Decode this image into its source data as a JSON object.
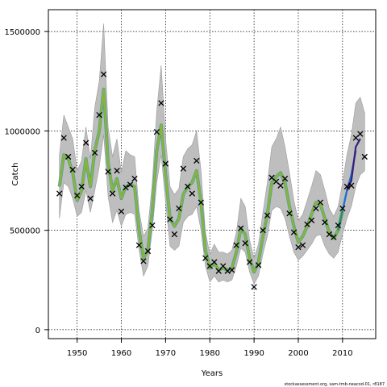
{
  "chart_data": {
    "type": "line",
    "title": "",
    "xlabel": "Years",
    "ylabel": "Catch",
    "xlim": [
      1943.5,
      2017.5
    ],
    "ylim": [
      -45000,
      1610000
    ],
    "xticks": [
      1950,
      1960,
      1970,
      1980,
      1990,
      2000,
      2010
    ],
    "yticks": [
      0,
      500000,
      1000000,
      1500000
    ],
    "grid": true,
    "grid_style": "dotted",
    "footer": "stockassessment.org, sam-tmb-neacod-01, r8187",
    "colors": {
      "band": "#bebebe",
      "estimate_main": "#8bb33a",
      "estimate_retro_a": "#2e8b57",
      "estimate_retro_b": "#1f6fd6",
      "estimate_retro_c": "#3b1f7a",
      "observed_marker": "#000000"
    },
    "series": [
      {
        "name": "",
        "kind": "observed",
        "marker": "x",
        "x": [
          1946,
          1947,
          1948,
          1949,
          1950,
          1951,
          1952,
          1953,
          1954,
          1955,
          1956,
          1957,
          1958,
          1959,
          1960,
          1961,
          1962,
          1963,
          1964,
          1965,
          1966,
          1967,
          1968,
          1969,
          1970,
          1971,
          1972,
          1973,
          1974,
          1975,
          1976,
          1977,
          1978,
          1979,
          1980,
          1981,
          1982,
          1983,
          1984,
          1985,
          1986,
          1987,
          1988,
          1989,
          1990,
          1991,
          1992,
          1993,
          1994,
          1995,
          1996,
          1997,
          1998,
          1999,
          2000,
          2001,
          2002,
          2003,
          2004,
          2005,
          2006,
          2007,
          2008,
          2009,
          2010,
          2011,
          2012,
          2013,
          2014,
          2015
        ],
        "values": [
          685000,
          965000,
          870000,
          805000,
          675000,
          720000,
          940000,
          660000,
          890000,
          1080000,
          1285000,
          795000,
          685000,
          800000,
          595000,
          715000,
          730000,
          760000,
          425000,
          345000,
          395000,
          525000,
          995000,
          1140000,
          835000,
          555000,
          480000,
          610000,
          810000,
          720000,
          685000,
          850000,
          640000,
          360000,
          320000,
          340000,
          295000,
          320000,
          295000,
          300000,
          425000,
          510000,
          435000,
          340000,
          215000,
          325000,
          500000,
          575000,
          765000,
          745000,
          725000,
          760000,
          585000,
          490000,
          415000,
          425000,
          530000,
          550000,
          610000,
          640000,
          540000,
          480000,
          465000,
          525000,
          610000,
          720000,
          725000,
          965000,
          985000,
          870000
        ]
      },
      {
        "name": "",
        "kind": "estimate",
        "x": [
          1946,
          1947,
          1948,
          1949,
          1950,
          1951,
          1952,
          1953,
          1954,
          1955,
          1956,
          1957,
          1958,
          1959,
          1960,
          1961,
          1962,
          1963,
          1964,
          1965,
          1966,
          1967,
          1968,
          1969,
          1970,
          1971,
          1972,
          1973,
          1974,
          1975,
          1976,
          1977,
          1978,
          1979,
          1980,
          1981,
          1982,
          1983,
          1984,
          1985,
          1986,
          1987,
          1988,
          1989,
          1990,
          1991,
          1992,
          1993,
          1994,
          1995,
          1996,
          1997,
          1998,
          1999,
          2000,
          2001,
          2002,
          2003,
          2004,
          2005,
          2006,
          2007,
          2008,
          2009,
          2010
        ],
        "values": [
          720000,
          880000,
          860000,
          790000,
          650000,
          700000,
          860000,
          720000,
          900000,
          1000000,
          1210000,
          840000,
          700000,
          760000,
          660000,
          720000,
          730000,
          720000,
          500000,
          360000,
          400000,
          600000,
          900000,
          1030000,
          780000,
          560000,
          520000,
          560000,
          680000,
          720000,
          740000,
          800000,
          640000,
          400000,
          310000,
          335000,
          300000,
          310000,
          300000,
          310000,
          390000,
          510000,
          480000,
          360000,
          290000,
          340000,
          470000,
          580000,
          740000,
          770000,
          790000,
          740000,
          620000,
          520000,
          440000,
          470000,
          520000,
          580000,
          640000,
          630000,
          560000,
          490000,
          460000,
          500000,
          600000
        ],
        "lower": [
          560000,
          740000,
          720000,
          660000,
          570000,
          590000,
          700000,
          590000,
          700000,
          820000,
          980000,
          670000,
          540000,
          600000,
          520000,
          580000,
          590000,
          580000,
          400000,
          270000,
          320000,
          500000,
          740000,
          880000,
          640000,
          420000,
          400000,
          420000,
          540000,
          570000,
          580000,
          620000,
          500000,
          320000,
          240000,
          270000,
          240000,
          250000,
          240000,
          250000,
          320000,
          410000,
          390000,
          290000,
          230000,
          270000,
          380000,
          470000,
          600000,
          620000,
          610000,
          560000,
          470000,
          390000,
          350000,
          370000,
          400000,
          430000,
          470000,
          480000,
          420000,
          380000,
          360000,
          390000,
          480000
        ],
        "upper": [
          880000,
          1080000,
          1020000,
          960000,
          800000,
          850000,
          1020000,
          860000,
          1120000,
          1250000,
          1540000,
          1020000,
          870000,
          960000,
          790000,
          900000,
          880000,
          870000,
          600000,
          470000,
          510000,
          740000,
          1100000,
          1330000,
          960000,
          720000,
          680000,
          710000,
          870000,
          910000,
          930000,
          1000000,
          800000,
          490000,
          380000,
          430000,
          390000,
          390000,
          380000,
          400000,
          490000,
          660000,
          620000,
          450000,
          360000,
          430000,
          590000,
          740000,
          920000,
          960000,
          1020000,
          920000,
          790000,
          650000,
          550000,
          580000,
          650000,
          720000,
          800000,
          780000,
          700000,
          610000,
          570000,
          620000,
          740000
        ]
      },
      {
        "name": "",
        "kind": "retro",
        "x": [
          2009,
          2010,
          2011,
          2012
        ],
        "values": [
          500000,
          600000,
          700000,
          750000
        ]
      },
      {
        "name": "",
        "kind": "retro",
        "x": [
          2010,
          2011,
          2012,
          2013
        ],
        "values": [
          600000,
          700000,
          780000,
          900000
        ]
      },
      {
        "name": "",
        "kind": "retro",
        "x": [
          2011,
          2012,
          2013,
          2014
        ],
        "values": [
          700000,
          750000,
          920000,
          960000
        ]
      }
    ],
    "band_tail": {
      "x": [
        2010,
        2011,
        2012,
        2013,
        2014,
        2015
      ],
      "lower": [
        480000,
        560000,
        620000,
        720000,
        780000,
        800000
      ],
      "upper": [
        740000,
        880000,
        980000,
        1140000,
        1170000,
        1090000
      ]
    }
  }
}
